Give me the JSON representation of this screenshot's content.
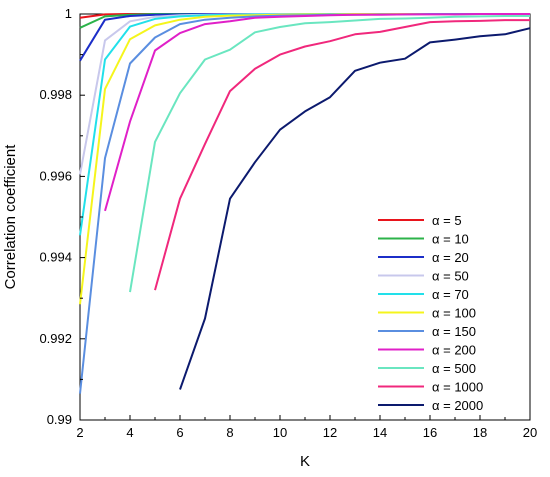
{
  "chart_data": {
    "type": "line",
    "title": "",
    "xlabel": "K",
    "ylabel": "Correlation coefficient",
    "xlim": [
      2,
      20
    ],
    "ylim": [
      0.99,
      1.0
    ],
    "xticks": [
      2,
      4,
      6,
      8,
      10,
      12,
      14,
      16,
      18,
      20
    ],
    "xtick_labels": [
      "2",
      "4",
      "6",
      "8",
      "10",
      "12",
      "14",
      "16",
      "18",
      "20"
    ],
    "yticks": [
      0.99,
      0.992,
      0.994,
      0.996,
      0.998,
      1.0
    ],
    "ytick_labels": [
      "0.99",
      "0.992",
      "0.994",
      "0.996",
      "0.998",
      "1"
    ],
    "grid": false,
    "legend_position": "bottom-right",
    "series": [
      {
        "name": "α = 5",
        "color": "#e8141c",
        "x": [
          2,
          3,
          4,
          5,
          6,
          7,
          8,
          9,
          10,
          11,
          12,
          13,
          14,
          15,
          16,
          17,
          18,
          19,
          20
        ],
        "y": [
          0.99991,
          0.99999,
          1,
          1,
          1,
          1,
          1,
          1,
          1,
          1,
          1,
          1,
          1,
          1,
          1,
          1,
          1,
          1,
          1
        ]
      },
      {
        "name": "α = 10",
        "color": "#2cb34a",
        "x": [
          2,
          3,
          4,
          5,
          6,
          7,
          8,
          9,
          10,
          11,
          12,
          13,
          14,
          15,
          16,
          17,
          18,
          19,
          20
        ],
        "y": [
          0.99966,
          0.99994,
          0.99998,
          1,
          1,
          1,
          1,
          1,
          1,
          1,
          1,
          1,
          1,
          1,
          1,
          1,
          1,
          1,
          1
        ]
      },
      {
        "name": "α = 20",
        "color": "#1c2ec8",
        "x": [
          2,
          3,
          4,
          5,
          6,
          7,
          8,
          9,
          10,
          11,
          12,
          13,
          14,
          15,
          16,
          17,
          18,
          19,
          20
        ],
        "y": [
          0.99885,
          0.99986,
          0.99995,
          0.99998,
          0.99999,
          1,
          1,
          1,
          1,
          1,
          1,
          1,
          1,
          1,
          1,
          1,
          1,
          1,
          1
        ]
      },
      {
        "name": "α = 50",
        "color": "#c8c8ec",
        "x": [
          2,
          3,
          4,
          5,
          6,
          7,
          8,
          9,
          10,
          11,
          12,
          13,
          14,
          15,
          16,
          17,
          18,
          19,
          20
        ],
        "y": [
          0.99605,
          0.99935,
          0.99982,
          0.99993,
          0.99997,
          0.99998,
          0.99999,
          1,
          1,
          1,
          1,
          1,
          1,
          1,
          1,
          1,
          1,
          1,
          1
        ]
      },
      {
        "name": "α = 70",
        "color": "#22e0ea",
        "x": [
          2,
          3,
          4,
          5,
          6,
          7,
          8,
          9,
          10,
          11,
          12,
          13,
          14,
          15,
          16,
          17,
          18,
          19,
          20
        ],
        "y": [
          0.99455,
          0.99888,
          0.99969,
          0.99988,
          0.99994,
          0.99997,
          0.99998,
          0.99999,
          0.99999,
          1,
          1,
          1,
          1,
          1,
          1,
          1,
          1,
          1,
          1
        ]
      },
      {
        "name": "α = 100",
        "color": "#f5f51c",
        "x": [
          2,
          3,
          4,
          5,
          6,
          7,
          8,
          9,
          10,
          11,
          12,
          13,
          14,
          15,
          16,
          17,
          18,
          19,
          20
        ],
        "y": [
          0.99285,
          0.99815,
          0.99938,
          0.99972,
          0.99986,
          0.99993,
          0.99996,
          0.99997,
          0.99998,
          0.99999,
          0.99999,
          1,
          1,
          1,
          1,
          1,
          1,
          1,
          1
        ]
      },
      {
        "name": "α = 150",
        "color": "#5a8ee0",
        "x": [
          2,
          3,
          4,
          5,
          6,
          7,
          8,
          9,
          10,
          11,
          12,
          13,
          14,
          15,
          16,
          17,
          18,
          19,
          20
        ],
        "y": [
          0.99065,
          0.99645,
          0.99878,
          0.99942,
          0.99975,
          0.99986,
          0.99991,
          0.99994,
          0.99996,
          0.99997,
          0.99998,
          0.99998,
          0.99999,
          0.99999,
          1,
          1,
          1,
          1,
          1
        ]
      },
      {
        "name": "α = 200",
        "color": "#e020c8",
        "x": [
          3,
          4,
          5,
          6,
          7,
          8,
          9,
          10,
          11,
          12,
          13,
          14,
          15,
          16,
          17,
          18,
          19,
          20
        ],
        "y": [
          0.99515,
          0.99735,
          0.9991,
          0.99953,
          0.99975,
          0.99982,
          0.99991,
          0.99993,
          0.99995,
          0.99997,
          0.99998,
          0.99998,
          0.99999,
          0.99999,
          0.99999,
          1,
          1,
          1
        ]
      },
      {
        "name": "α = 500",
        "color": "#6ae6c0",
        "x": [
          4,
          5,
          6,
          7,
          8,
          9,
          10,
          11,
          12,
          13,
          14,
          15,
          16,
          17,
          18,
          19,
          20
        ],
        "y": [
          0.99315,
          0.99685,
          0.99805,
          0.99888,
          0.99912,
          0.99955,
          0.99968,
          0.99977,
          0.9998,
          0.99984,
          0.99988,
          0.99989,
          0.99991,
          0.99993,
          0.99994,
          0.99995,
          0.99995
        ]
      },
      {
        "name": "α = 1000",
        "color": "#f0287c",
        "x": [
          5,
          6,
          7,
          8,
          9,
          10,
          11,
          12,
          13,
          14,
          15,
          16,
          17,
          18,
          19,
          20
        ],
        "y": [
          0.9932,
          0.99545,
          0.9968,
          0.9981,
          0.99865,
          0.999,
          0.9992,
          0.99933,
          0.9995,
          0.99956,
          0.99968,
          0.9998,
          0.99982,
          0.99983,
          0.99985,
          0.99985
        ]
      },
      {
        "name": "α = 2000",
        "color": "#0c1a6e",
        "x": [
          6,
          7,
          8,
          9,
          10,
          11,
          12,
          13,
          14,
          15,
          16,
          17,
          18,
          19,
          20
        ],
        "y": [
          0.99075,
          0.9925,
          0.99545,
          0.99635,
          0.99715,
          0.9976,
          0.99795,
          0.9986,
          0.9988,
          0.9989,
          0.9993,
          0.99937,
          0.99945,
          0.9995,
          0.99965
        ]
      }
    ]
  }
}
